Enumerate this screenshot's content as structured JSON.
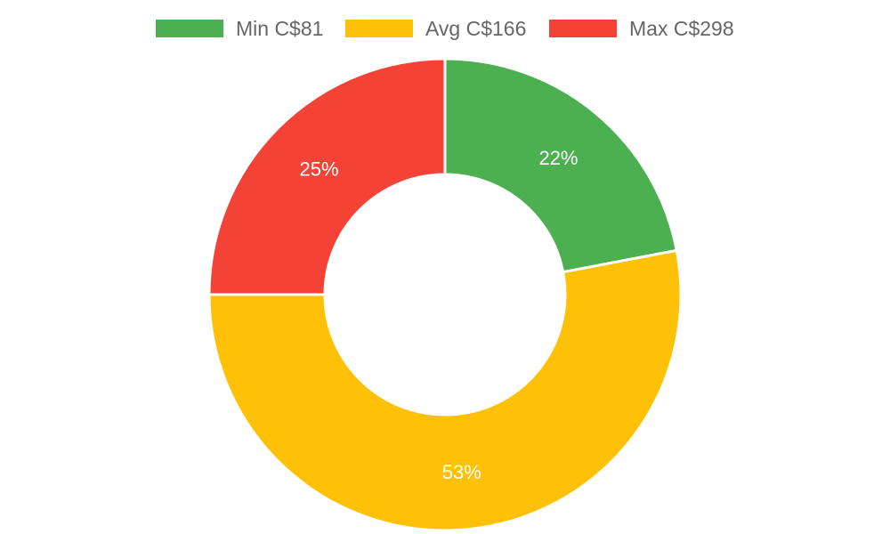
{
  "chart_data": {
    "type": "doughnut",
    "slices": [
      {
        "name": "Min C$81",
        "value": 22,
        "label": "22%",
        "color": "#4caf50"
      },
      {
        "name": "Avg C$166",
        "value": 53,
        "label": "53%",
        "color": "#ffc107"
      },
      {
        "name": "Max C$298",
        "value": 25,
        "label": "25%",
        "color": "#f44336"
      }
    ],
    "legend_position": "top",
    "start_angle": "top, clockwise"
  }
}
